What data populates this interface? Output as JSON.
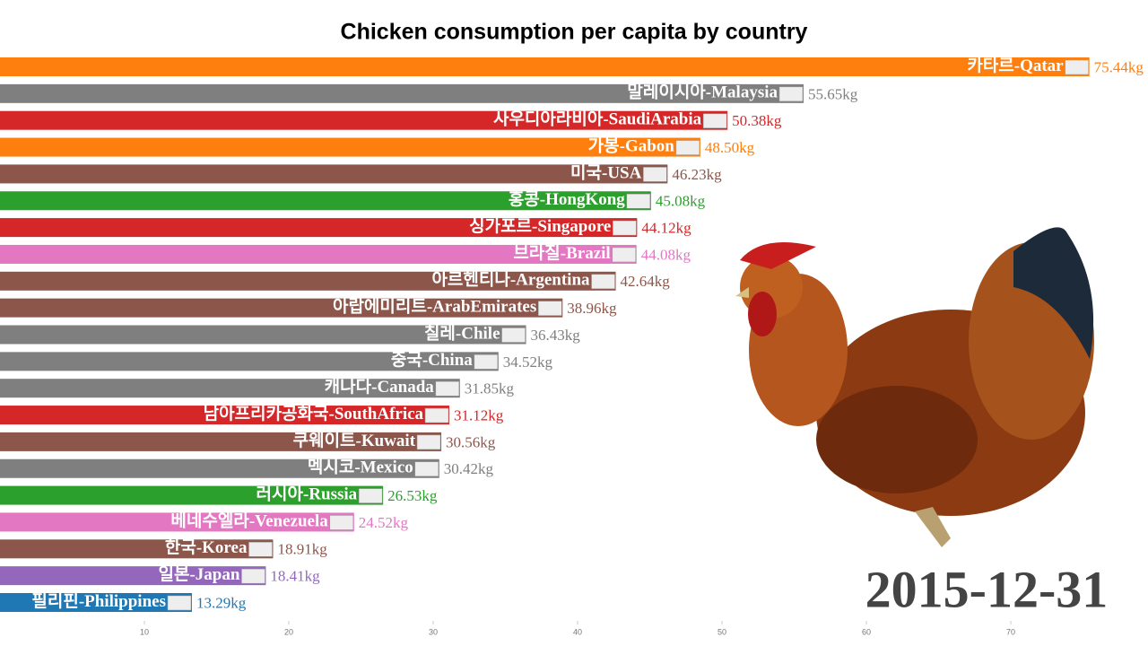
{
  "chart_data": {
    "type": "bar",
    "orientation": "horizontal",
    "title": "Chicken consumption per capita by country",
    "categories": [
      "카타르-Qatar",
      "말레이시아-Malaysia",
      "사우디아라비아-SaudiArabia",
      "가봉-Gabon",
      "미국-USA",
      "홍콩-HongKong",
      "싱가포르-Singapore",
      "브라질-Brazil",
      "아르헨티나-Argentina",
      "아랍에미리트-ArabEmirates",
      "칠레-Chile",
      "중국-China",
      "캐나다-Canada",
      "남아프리카공화국-SouthAfrica",
      "쿠웨이트-Kuwait",
      "멕시코-Mexico",
      "러시아-Russia",
      "베네수엘라-Venezuela",
      "한국-Korea",
      "일본-Japan",
      "필리핀-Philippines"
    ],
    "values": [
      75.44,
      55.65,
      50.38,
      48.5,
      46.23,
      45.08,
      44.12,
      44.08,
      42.64,
      38.96,
      36.43,
      34.52,
      31.85,
      31.12,
      30.56,
      30.42,
      26.53,
      24.52,
      18.91,
      18.41,
      13.29
    ],
    "value_labels": [
      "75.44kg",
      "55.65kg",
      "50.38kg",
      "48.50kg",
      "46.23kg",
      "45.08kg",
      "44.12kg",
      "44.08kg",
      "42.64kg",
      "38.96kg",
      "36.43kg",
      "34.52kg",
      "31.85kg",
      "31.12kg",
      "30.56kg",
      "30.42kg",
      "26.53kg",
      "24.52kg",
      "18.91kg",
      "18.41kg",
      "13.29kg"
    ],
    "colors": [
      "#ff7f0e",
      "#7f7f7f",
      "#d62728",
      "#ff7f0e",
      "#8c564b",
      "#2ca02c",
      "#d62728",
      "#e377c2",
      "#8c564b",
      "#8c564b",
      "#7f7f7f",
      "#7f7f7f",
      "#7f7f7f",
      "#d62728",
      "#8c564b",
      "#7f7f7f",
      "#2ca02c",
      "#e377c2",
      "#8c564b",
      "#9467bd",
      "#1f77b4"
    ],
    "xlim": [
      0,
      79.5
    ],
    "xticks": [
      10,
      20,
      30,
      40,
      50,
      60,
      70
    ],
    "date": "2015-12-31"
  }
}
